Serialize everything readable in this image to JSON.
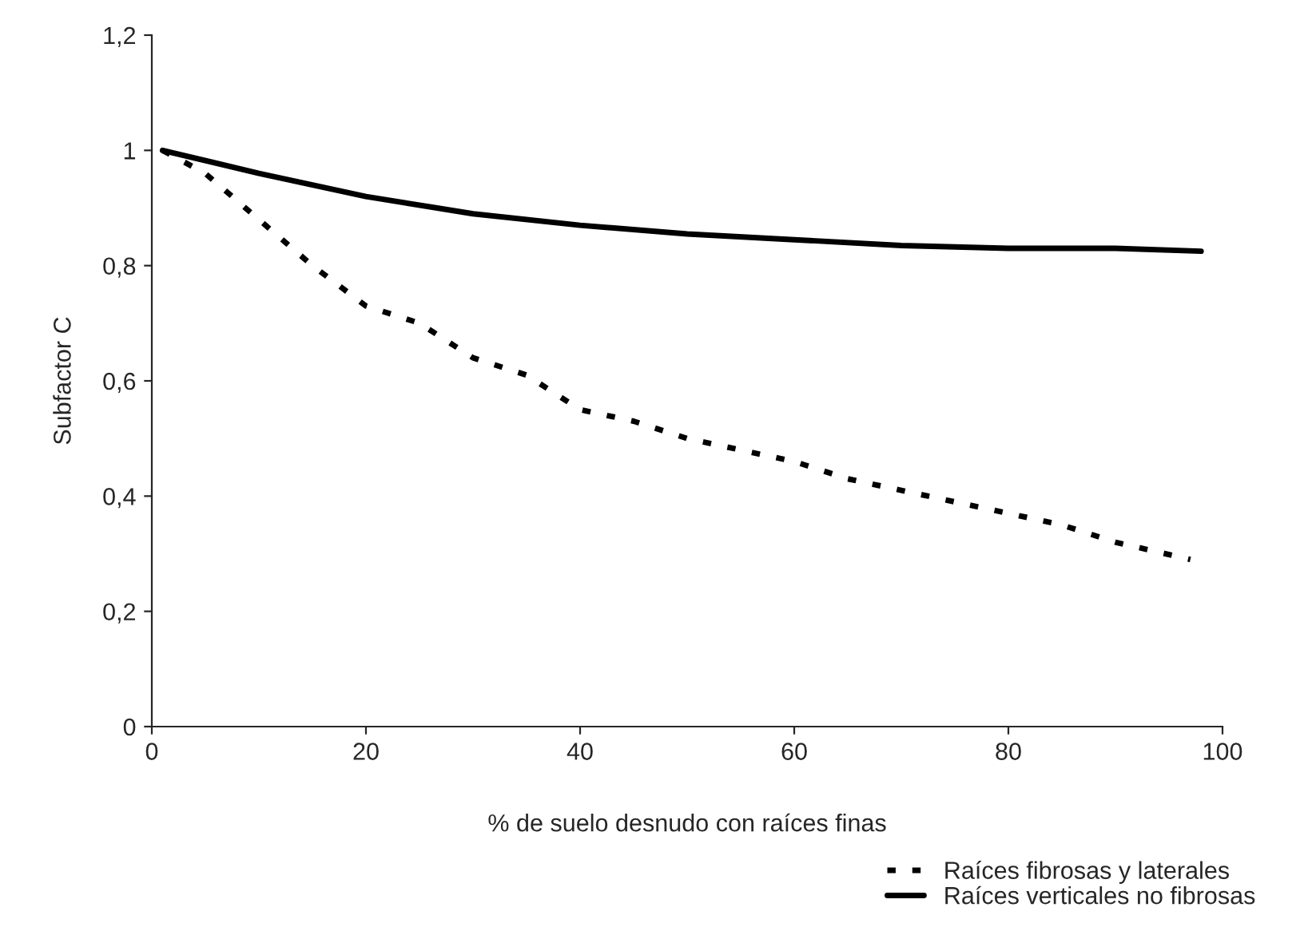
{
  "chart_data": {
    "type": "line",
    "xlabel": "% de suelo desnudo con raíces finas",
    "ylabel": "Subfactor C",
    "xlim": [
      0,
      100
    ],
    "xticks": [
      0,
      20,
      40,
      60,
      80,
      100
    ],
    "ylim": [
      0,
      1.2
    ],
    "yticks": [
      0,
      {
        "value": 0.2,
        "label": "0,2"
      },
      {
        "value": 0.4,
        "label": "0,4"
      },
      {
        "value": 0.6,
        "label": "0,6"
      },
      {
        "value": 0.8,
        "label": "0,8"
      },
      1,
      {
        "value": 1.2,
        "label": "1,2"
      }
    ],
    "grid": false,
    "legend": "bottom right",
    "marker": "none",
    "series": [
      {
        "name": "Raíces fibrosas y laterales",
        "color": "#000000",
        "line_style": "dashed",
        "x": [
          1,
          5,
          10,
          15,
          20,
          25,
          30,
          35,
          40,
          45,
          50,
          55,
          60,
          65,
          70,
          75,
          80,
          85,
          90,
          97
        ],
        "values": [
          1.0,
          0.96,
          0.88,
          0.8,
          0.73,
          0.7,
          0.64,
          0.61,
          0.55,
          0.53,
          0.5,
          0.48,
          0.46,
          0.43,
          0.41,
          0.39,
          0.37,
          0.35,
          0.32,
          0.29
        ]
      },
      {
        "name": "Raíces verticales no fibrosas",
        "color": "#000000",
        "line_style": "solid",
        "x": [
          1,
          10,
          20,
          30,
          40,
          50,
          60,
          70,
          80,
          90,
          98
        ],
        "values": [
          1.0,
          0.96,
          0.92,
          0.89,
          0.87,
          0.855,
          0.845,
          0.835,
          0.83,
          0.83,
          0.825
        ]
      }
    ]
  }
}
